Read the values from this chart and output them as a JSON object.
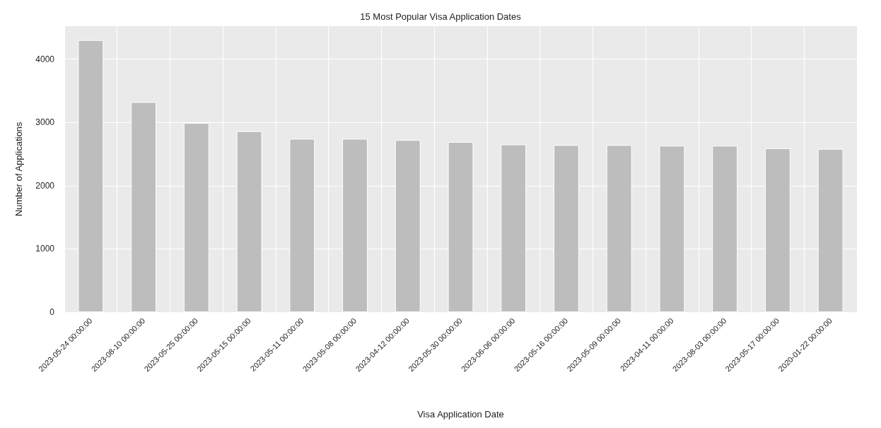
{
  "chart_data": {
    "type": "bar",
    "title": "15 Most Popular Visa Application Dates",
    "xlabel": "Visa Application Date",
    "ylabel": "Number of Applications",
    "categories": [
      "2023-05-24 00:00:00",
      "2023-08-10 00:00:00",
      "2023-05-25 00:00:00",
      "2023-05-15 00:00:00",
      "2023-05-11 00:00:00",
      "2023-05-08 00:00:00",
      "2023-04-12 00:00:00",
      "2023-05-30 00:00:00",
      "2023-06-06 00:00:00",
      "2023-05-16 00:00:00",
      "2023-05-09 00:00:00",
      "2023-04-11 00:00:00",
      "2023-08-03 00:00:00",
      "2023-05-17 00:00:00",
      "2020-01-22 00:00:00"
    ],
    "values": [
      4300,
      3320,
      2990,
      2860,
      2740,
      2740,
      2720,
      2690,
      2650,
      2640,
      2640,
      2630,
      2630,
      2590,
      2580
    ],
    "color": "#bdbdbd",
    "ylim": [
      0,
      4520
    ],
    "yticks": [
      0,
      1000,
      2000,
      3000,
      4000
    ],
    "grid": true
  }
}
